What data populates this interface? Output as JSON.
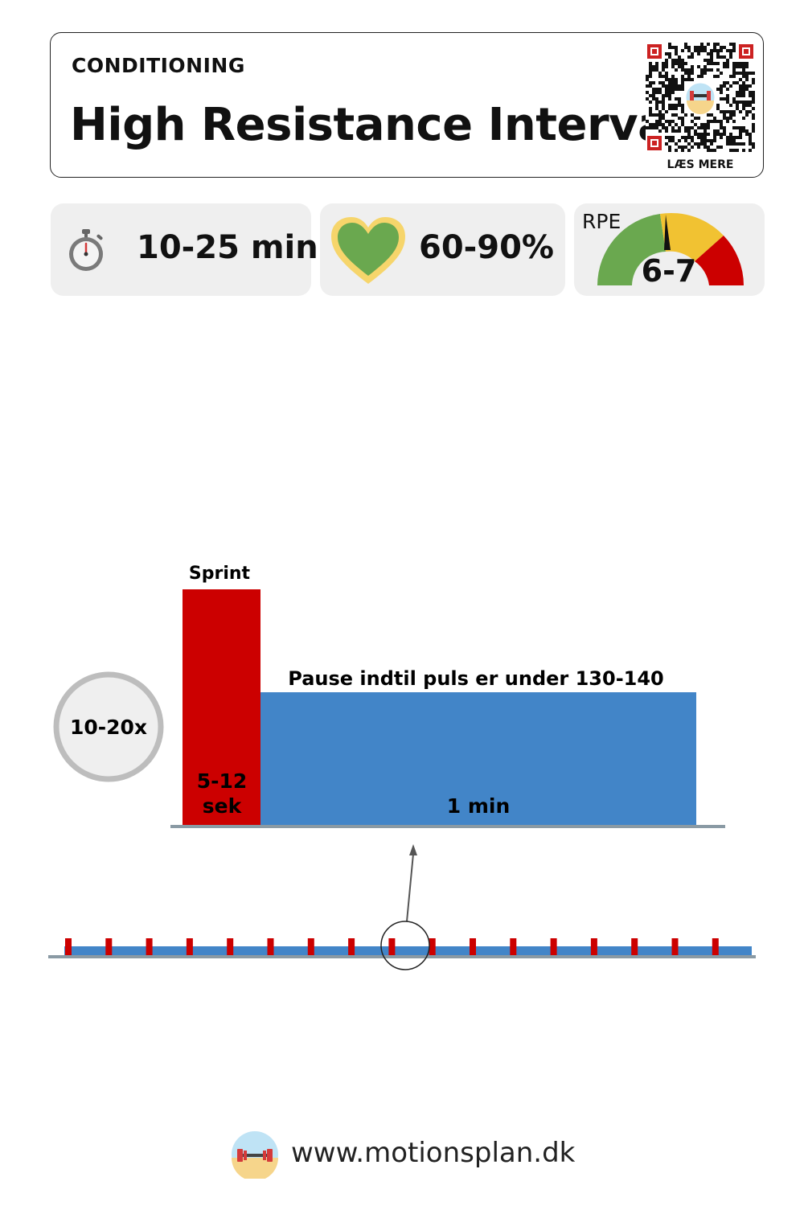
{
  "header": {
    "category": "CONDITIONING",
    "title": "High Resistance Intervals",
    "qr_caption": "LÆS MERE"
  },
  "stats": {
    "duration": "10-25 min",
    "heart_rate": "60-90%",
    "rpe_label": "RPE",
    "rpe_value": "6-7"
  },
  "icons": {
    "duration": "stopwatch-icon",
    "heart_rate": "heart-icon"
  },
  "interval": {
    "repeats": "10-20x",
    "work_label": "Sprint",
    "work_duration": "5-12 sek",
    "rest_label": "Pause indtil puls er under 130-140",
    "rest_duration": "1 min",
    "timeline_sprint_count": 17
  },
  "colors": {
    "sprint": "#cc0000",
    "rest": "#4285c8",
    "rpe_green": "#6aa84f",
    "rpe_yellow": "#f1c232",
    "rpe_red": "#cc0000",
    "heart_fill": "#6aa84f",
    "heart_outline": "#f6d56b"
  },
  "footer": {
    "url": "www.motionsplan.dk"
  }
}
